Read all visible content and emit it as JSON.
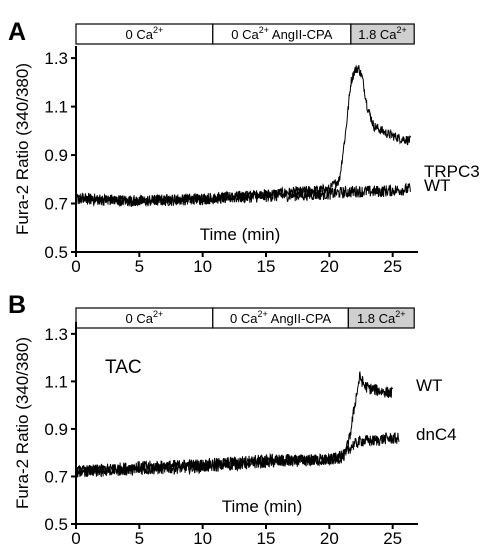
{
  "chart_data": [
    {
      "type": "line",
      "panel": "A",
      "xlabel": "Time (min)",
      "ylabel": "Fura-2 Ratio (340/380)",
      "xlim": [
        0,
        27
      ],
      "ylim": [
        0.5,
        1.35
      ],
      "x_ticks": [
        "0",
        "5",
        "10",
        "15",
        "20",
        "25"
      ],
      "y_ticks": [
        "0.5",
        "0.7",
        "0.9",
        "1.1",
        "1.3"
      ],
      "condition_bar": [
        {
          "label": "0 Ca",
          "sup": "2+",
          "x_start": 0,
          "x_end": 10.8,
          "shaded": false
        },
        {
          "label": "0 Ca",
          "sup": "2+",
          "suffix": " AngII-CPA",
          "x_start": 10.8,
          "x_end": 21.7,
          "shaded": false
        },
        {
          "label": "1.8 Ca",
          "sup": "2+",
          "x_start": 21.7,
          "x_end": 26.7,
          "shaded": true
        }
      ],
      "series": [
        {
          "name": "TRPC3",
          "x": [
            0,
            5,
            10,
            15,
            20,
            20.8,
            21.3,
            21.7,
            22.0,
            22.3,
            22.6,
            23.0,
            23.5,
            24.5,
            25.5,
            26.4
          ],
          "y": [
            0.72,
            0.71,
            0.72,
            0.74,
            0.76,
            0.8,
            1.0,
            1.2,
            1.25,
            1.26,
            1.22,
            1.1,
            1.02,
            0.99,
            0.97,
            0.96
          ],
          "noise": 0.02
        },
        {
          "name": "WT",
          "x": [
            0,
            5,
            10,
            15,
            20,
            22,
            24,
            26.4
          ],
          "y": [
            0.72,
            0.71,
            0.72,
            0.73,
            0.74,
            0.75,
            0.75,
            0.76
          ],
          "noise": 0.025
        }
      ]
    },
    {
      "type": "line",
      "panel": "B",
      "annotation": "TAC",
      "xlabel": "Time (min)",
      "ylabel": "Fura-2 Ratio (340/380)",
      "xlim": [
        0,
        27
      ],
      "ylim": [
        0.5,
        1.35
      ],
      "x_ticks": [
        "0",
        "5",
        "10",
        "15",
        "20",
        "25"
      ],
      "y_ticks": [
        "0.5",
        "0.7",
        "0.9",
        "1.1",
        "1.3"
      ],
      "condition_bar": [
        {
          "label": "0 Ca",
          "sup": "2+",
          "x_start": 0,
          "x_end": 10.8,
          "shaded": false
        },
        {
          "label": "0 Ca",
          "sup": "2+",
          "suffix": " AngII-CPA",
          "x_start": 10.8,
          "x_end": 21.5,
          "shaded": false
        },
        {
          "label": "1.8 Ca",
          "sup": "2+",
          "x_start": 21.5,
          "x_end": 26.7,
          "shaded": true
        }
      ],
      "series": [
        {
          "name": "WT",
          "x": [
            0,
            5,
            10,
            15,
            20,
            21.2,
            21.6,
            22.0,
            22.4,
            22.8,
            23.2,
            24,
            25
          ],
          "y": [
            0.72,
            0.73,
            0.74,
            0.76,
            0.77,
            0.79,
            0.86,
            1.0,
            1.12,
            1.08,
            1.07,
            1.06,
            1.05
          ],
          "noise": 0.025
        },
        {
          "name": "dnC4",
          "x": [
            0,
            5,
            10,
            15,
            20,
            21,
            21.8,
            22.5,
            23.5,
            24.5,
            25.5
          ],
          "y": [
            0.72,
            0.74,
            0.75,
            0.77,
            0.77,
            0.78,
            0.83,
            0.85,
            0.85,
            0.86,
            0.86
          ],
          "noise": 0.025
        }
      ]
    }
  ]
}
